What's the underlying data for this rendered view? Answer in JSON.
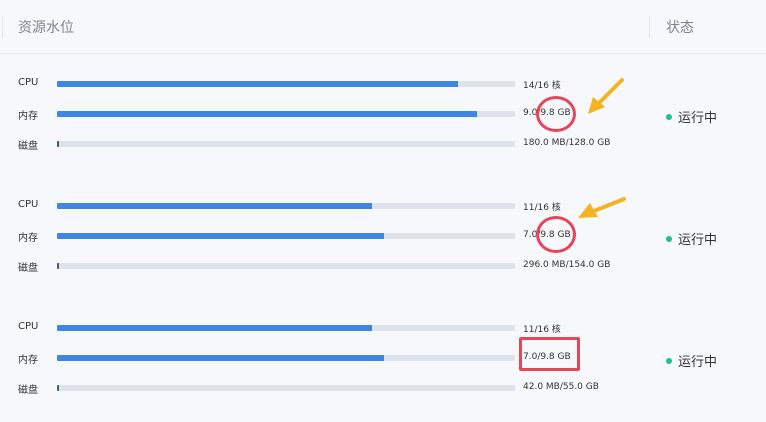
{
  "header": {
    "resource_col": "资源水位",
    "status_col": "状态"
  },
  "rows": [
    {
      "cpu": {
        "label": "CPU",
        "value": "14/16 核",
        "fraction": 0.875
      },
      "mem": {
        "label": "内存",
        "value": "9.0/9.8 GB",
        "fraction": 0.918
      },
      "disk": {
        "label": "磁盘",
        "value": "180.0 MB/128.0 GB",
        "fraction": 0.0014
      },
      "status": "运行中"
    },
    {
      "cpu": {
        "label": "CPU",
        "value": "11/16 核",
        "fraction": 0.6875
      },
      "mem": {
        "label": "内存",
        "value": "7.0/9.8 GB",
        "fraction": 0.714
      },
      "disk": {
        "label": "磁盘",
        "value": "296.0 MB/154.0 GB",
        "fraction": 0.0019
      },
      "status": "运行中"
    },
    {
      "cpu": {
        "label": "CPU",
        "value": "11/16 核",
        "fraction": 0.6875
      },
      "mem": {
        "label": "内存",
        "value": "7.0/9.8 GB",
        "fraction": 0.714
      },
      "disk": {
        "label": "磁盘",
        "value": "42.0 MB/55.0 GB",
        "fraction": 0.0008
      },
      "status": "运行中"
    }
  ],
  "colors": {
    "bar_fill": "#3f86e4",
    "bar_track": "#dde3eb",
    "status_dot": "#1ec28b",
    "annotation_red": "#e8445a",
    "annotation_arrow": "#f5b324"
  }
}
